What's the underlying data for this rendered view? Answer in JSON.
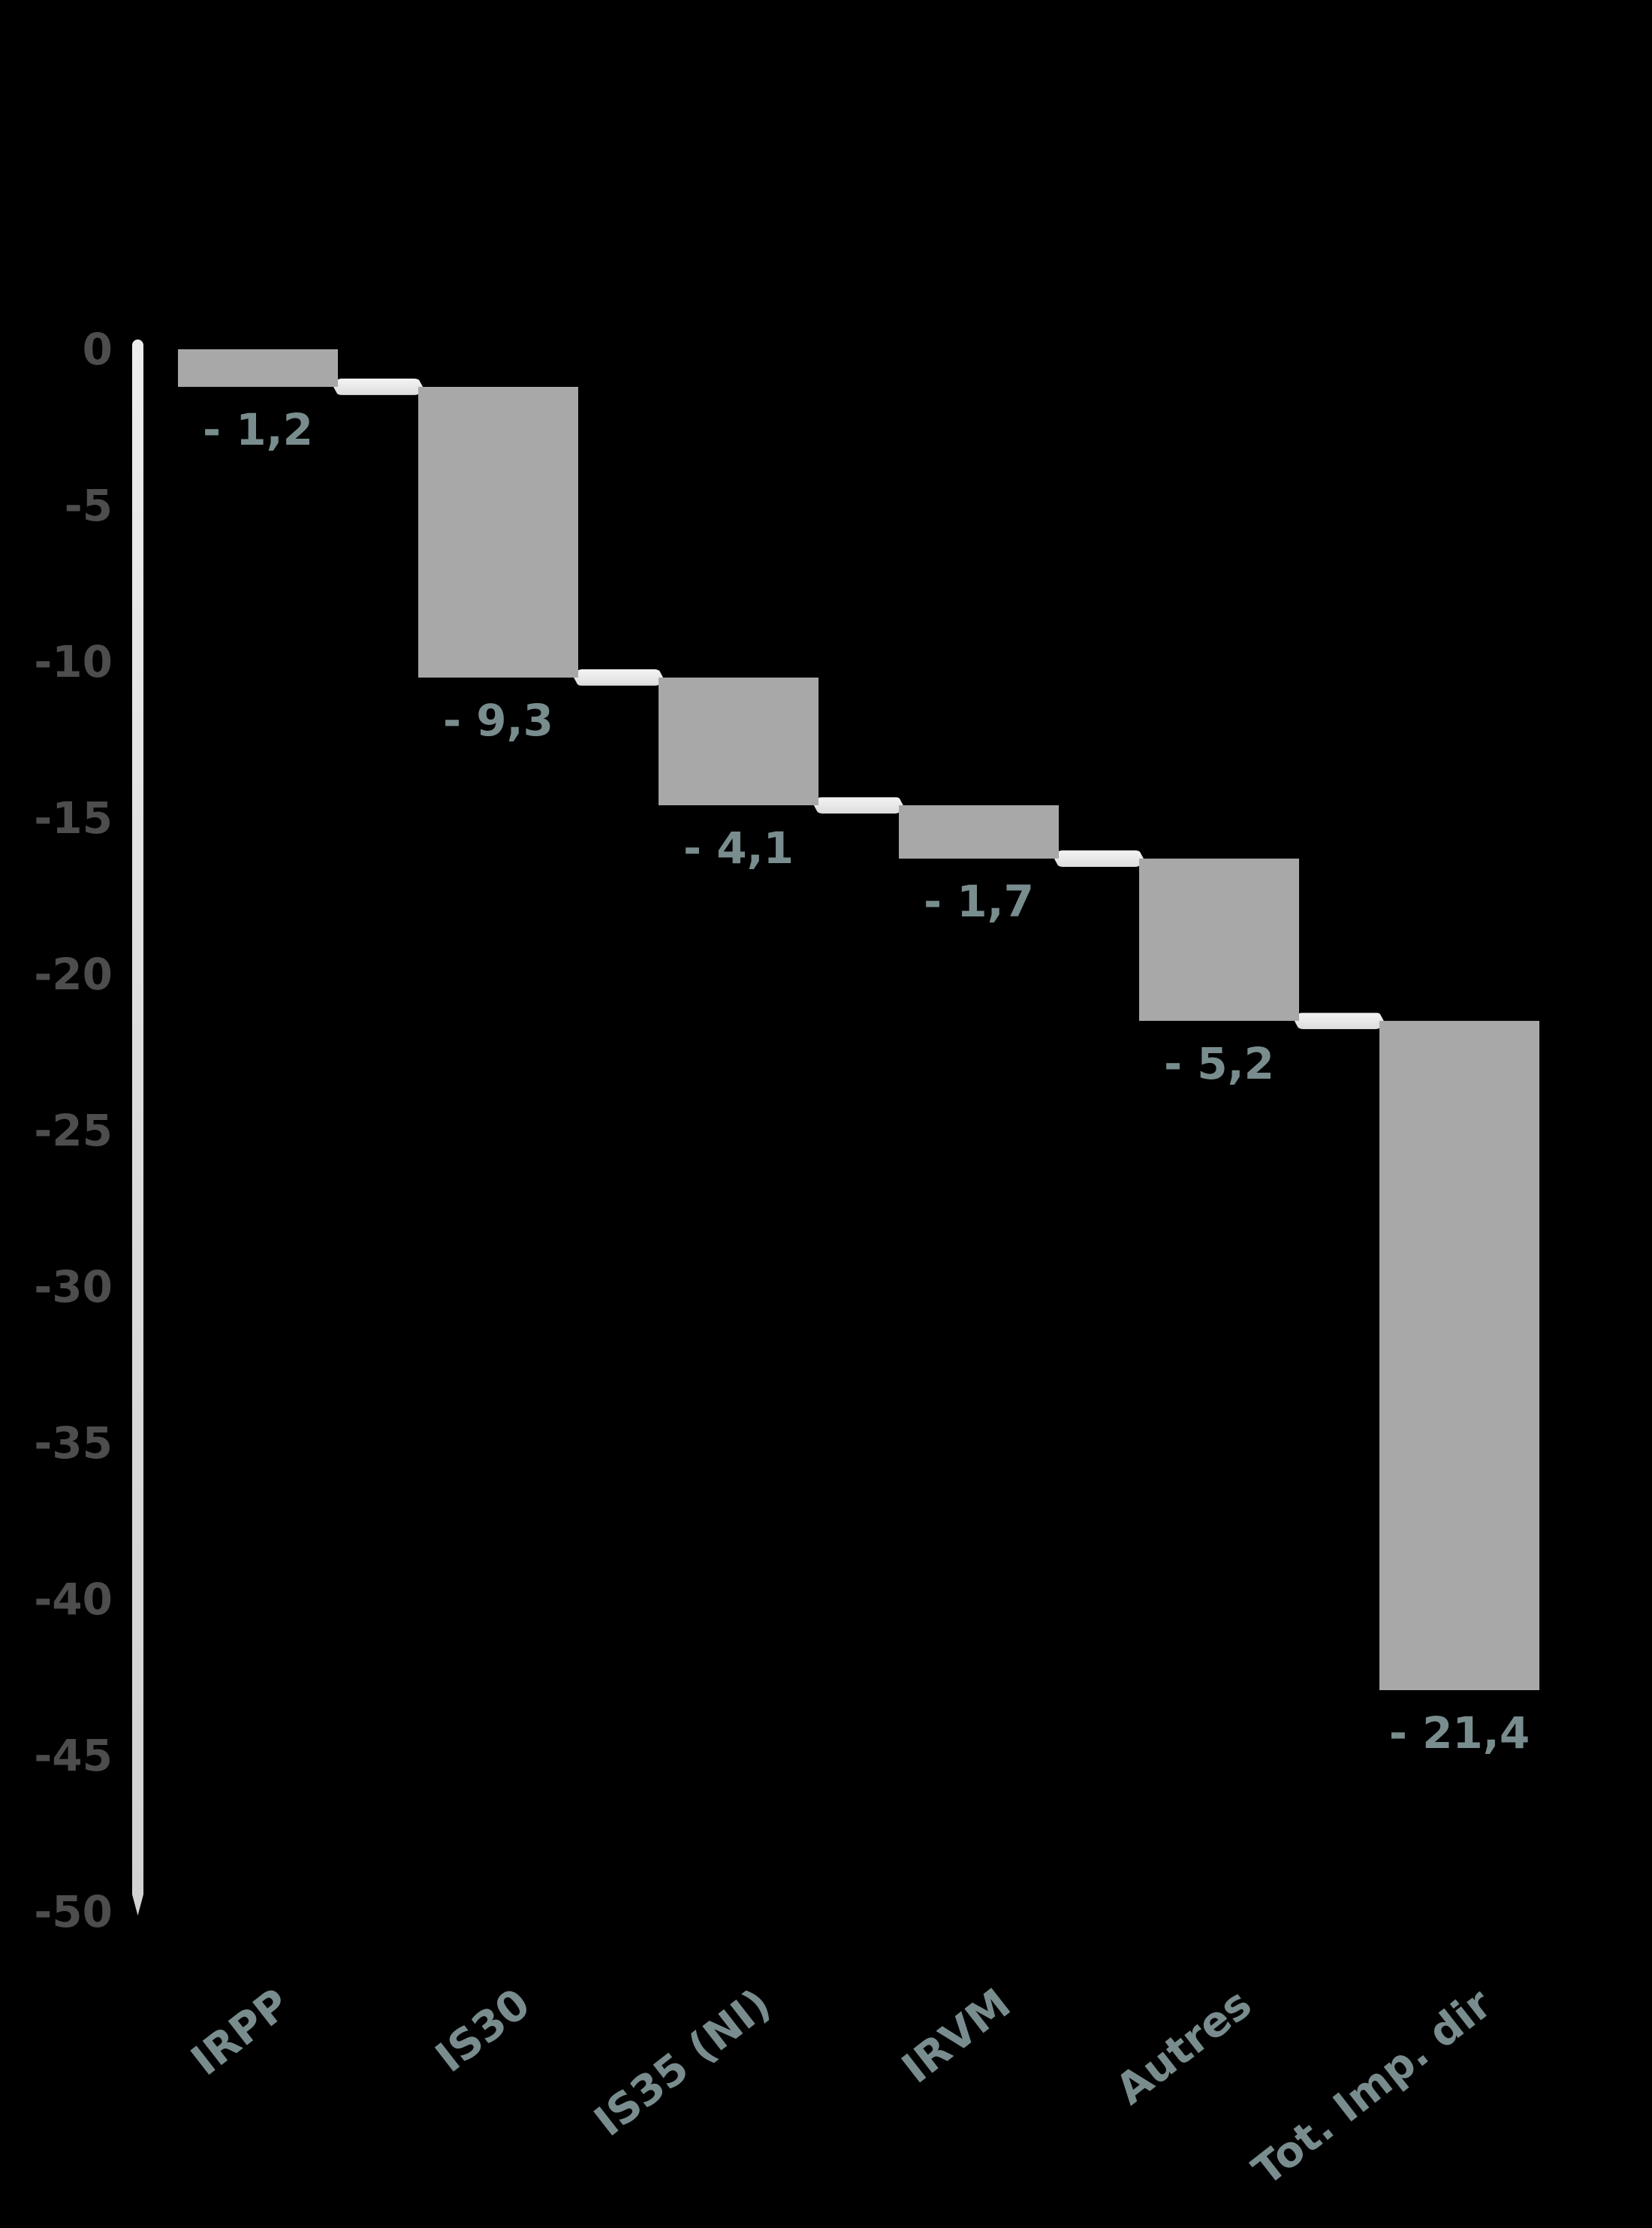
{
  "chart_data": {
    "type": "bar",
    "subtype": "waterfall",
    "title": "",
    "xlabel": "",
    "ylabel": "",
    "grid": false,
    "legend": null,
    "categories": [
      "IRPP",
      "IS30",
      "IS35 (NI)",
      "IRVM",
      "Autres",
      "Tot. Imp. dir"
    ],
    "values": [
      -1.2,
      -9.3,
      -4.1,
      -1.7,
      -5.2,
      -21.4
    ],
    "data_labels": [
      "- 1,2",
      "- 9,3",
      "- 4,1",
      "- 1,7",
      "- 5,2",
      "- 21,4"
    ],
    "cumulative_start": [
      0,
      -1.2,
      -10.5,
      -14.6,
      -16.3,
      -21.5
    ],
    "cumulative_end": [
      -1.2,
      -10.5,
      -14.6,
      -16.3,
      -21.5,
      -42.9
    ],
    "y_ticks": [
      0,
      -5,
      -10,
      -15,
      -20,
      -25,
      -30,
      -35,
      -40,
      -45,
      -50
    ],
    "y_tick_labels": [
      "0",
      "-5",
      "-10",
      "-15",
      "-20",
      "-25",
      "-30",
      "-35",
      "-40",
      "-45",
      "-50"
    ],
    "ylim": [
      0,
      -50
    ],
    "colors": {
      "background": "#000000",
      "bar": "#A8A8A8",
      "connector": "#E6E6E6",
      "axis_line": "#DBDBDB",
      "tick_label": "#4D4D4D",
      "data_label": "#798D8E",
      "category_label": "#798D8E"
    }
  }
}
